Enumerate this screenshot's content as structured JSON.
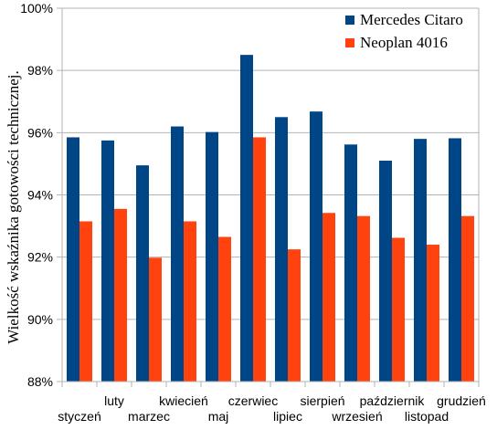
{
  "chart_data": {
    "type": "bar",
    "title": "",
    "xlabel": "",
    "ylabel": "Wielkość wskaźnika gotowości technicznej.",
    "ylim": [
      88,
      100
    ],
    "yticks": [
      "88%",
      "90%",
      "92%",
      "94%",
      "96%",
      "98%",
      "100%"
    ],
    "grid": "horizontal",
    "legend_position": "top-right",
    "categories": [
      "styczeń",
      "luty",
      "marzec",
      "kwiecień",
      "maj",
      "czerwiec",
      "lipiec",
      "sierpień",
      "wrzesień",
      "październik",
      "listopad",
      "grudzień"
    ],
    "series": [
      {
        "name": "Mercedes Citaro",
        "color": "#004586",
        "values": [
          95.85,
          95.75,
          94.95,
          96.2,
          96.02,
          98.5,
          96.5,
          96.68,
          95.62,
          95.1,
          95.8,
          95.82
        ]
      },
      {
        "name": "Neoplan 4016",
        "color": "#ff420e",
        "values": [
          93.15,
          93.55,
          91.98,
          93.15,
          92.65,
          95.85,
          92.25,
          93.42,
          93.32,
          92.62,
          92.4,
          93.32
        ]
      }
    ]
  }
}
